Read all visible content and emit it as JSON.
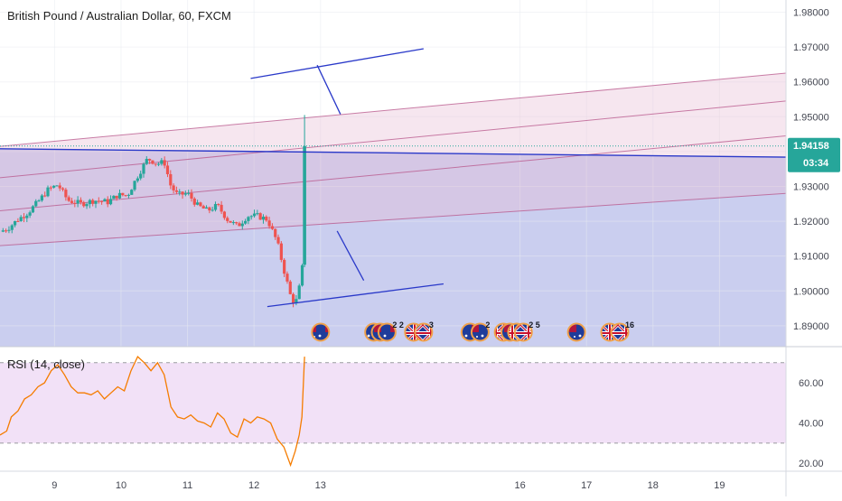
{
  "chart_data": [
    {
      "type": "candlestick",
      "title": "British Pound / Australian Dollar, 60, FXCM",
      "y_ticks": [
        "1.98000",
        "1.97000",
        "1.96000",
        "1.95000",
        "1.94000",
        "1.93000",
        "1.92000",
        "1.91000",
        "1.90000",
        "1.89000"
      ],
      "ylim": [
        1.884,
        1.9835
      ],
      "x_ticks": [
        {
          "label": "9",
          "x": 9
        },
        {
          "label": "10",
          "x": 10
        },
        {
          "label": "11",
          "x": 11
        },
        {
          "label": "12",
          "x": 12
        },
        {
          "label": "13",
          "x": 13
        },
        {
          "label": "16",
          "x": 16
        },
        {
          "label": "17",
          "x": 17
        },
        {
          "label": "18",
          "x": 18
        },
        {
          "label": "19",
          "x": 19
        }
      ],
      "xlim": [
        8.18,
        20.0
      ],
      "last_price": {
        "value": 1.94158,
        "label": "1.94158",
        "countdown": "03:34",
        "color": "#26a69a"
      },
      "colors": {
        "up": "#26a69a",
        "down": "#ef5350",
        "background_zone": "#c7cbee",
        "channel": "#b8558a",
        "trend": "#2a39c9"
      },
      "close_path": [
        [
          8.18,
          1.917
        ],
        [
          8.3,
          1.918
        ],
        [
          8.45,
          1.9205
        ],
        [
          8.6,
          1.9225
        ],
        [
          8.75,
          1.9255
        ],
        [
          8.9,
          1.929
        ],
        [
          9.05,
          1.9305
        ],
        [
          9.2,
          1.926
        ],
        [
          9.4,
          1.925
        ],
        [
          9.6,
          1.926
        ],
        [
          9.8,
          1.9255
        ],
        [
          9.95,
          1.9275
        ],
        [
          10.1,
          1.9275
        ],
        [
          10.25,
          1.933
        ],
        [
          10.4,
          1.938
        ],
        [
          10.55,
          1.9365
        ],
        [
          10.65,
          1.937
        ],
        [
          10.75,
          1.93
        ],
        [
          10.85,
          1.9275
        ],
        [
          11.0,
          1.928
        ],
        [
          11.15,
          1.9245
        ],
        [
          11.3,
          1.923
        ],
        [
          11.45,
          1.9245
        ],
        [
          11.6,
          1.9205
        ],
        [
          11.75,
          1.9185
        ],
        [
          11.9,
          1.9215
        ],
        [
          12.05,
          1.9215
        ],
        [
          12.2,
          1.9205
        ],
        [
          12.35,
          1.914
        ],
        [
          12.45,
          1.906
        ],
        [
          12.55,
          1.8985
        ],
        [
          12.62,
          1.896
        ],
        [
          12.7,
          1.9025
        ],
        [
          12.73,
          1.9075
        ],
        [
          12.76,
          1.9408
        ]
      ],
      "channel": {
        "y_at_8_18": [
          1.9415,
          1.9325,
          1.923,
          1.913
        ],
        "y_at_20_0": [
          1.9625,
          1.9545,
          1.9445,
          1.928
        ]
      },
      "trend_line": {
        "from": [
          8.18,
          1.9408
        ],
        "to": [
          20.0,
          1.9384
        ]
      },
      "pattern_lines": [
        {
          "from": [
            11.95,
            1.961
          ],
          "to": [
            14.55,
            1.9695
          ]
        },
        {
          "from": [
            12.2,
            1.8955
          ],
          "to": [
            14.85,
            1.902
          ]
        },
        {
          "from": [
            12.95,
            1.9648
          ],
          "to": [
            13.3,
            1.9507
          ]
        },
        {
          "from": [
            13.25,
            1.9172
          ],
          "to": [
            13.65,
            1.903
          ]
        }
      ],
      "events": [
        {
          "flag": "au",
          "x": 13.0,
          "text": ""
        },
        {
          "flag": "au",
          "x": 13.8,
          "text": ""
        },
        {
          "flag": "au",
          "x": 13.9,
          "text": ""
        },
        {
          "flag": "au",
          "x": 14.0,
          "text": "2 2"
        },
        {
          "flag": "uk",
          "x": 14.4,
          "text": ""
        },
        {
          "flag": "uk",
          "x": 14.55,
          "text": "3"
        },
        {
          "flag": "au",
          "x": 15.25,
          "text": ""
        },
        {
          "flag": "au",
          "x": 15.4,
          "text": "2"
        },
        {
          "flag": "uk",
          "x": 15.75,
          "text": ""
        },
        {
          "flag": "au",
          "x": 15.85,
          "text": ""
        },
        {
          "flag": "uk",
          "x": 15.95,
          "text": ""
        },
        {
          "flag": "uk",
          "x": 16.05,
          "text": "2 5"
        },
        {
          "flag": "au",
          "x": 16.85,
          "text": ""
        },
        {
          "flag": "uk",
          "x": 17.35,
          "text": ""
        },
        {
          "flag": "uk",
          "x": 17.5,
          "text": "16"
        }
      ]
    },
    {
      "type": "line",
      "title": "RSI (14, close)",
      "y_ticks": [
        "60.00",
        "40.00",
        "20.00"
      ],
      "ylim": [
        16,
        78
      ],
      "bands": [
        70,
        30
      ],
      "color": "#f57c00",
      "x": [
        8.18,
        8.28,
        8.35,
        8.45,
        8.55,
        8.65,
        8.75,
        8.85,
        8.95,
        9.05,
        9.15,
        9.25,
        9.35,
        9.45,
        9.55,
        9.65,
        9.75,
        9.85,
        9.95,
        10.05,
        10.15,
        10.25,
        10.35,
        10.45,
        10.55,
        10.65,
        10.75,
        10.85,
        10.95,
        11.05,
        11.15,
        11.25,
        11.35,
        11.45,
        11.55,
        11.65,
        11.75,
        11.85,
        11.95,
        12.05,
        12.15,
        12.25,
        12.35,
        12.45,
        12.55,
        12.62,
        12.68,
        12.72,
        12.76
      ],
      "values": [
        34,
        36,
        43,
        46,
        52,
        54,
        58,
        60,
        66,
        69,
        64,
        58,
        55,
        55,
        54,
        56,
        52,
        55,
        58,
        56,
        66,
        73,
        70,
        66,
        70,
        64,
        48,
        43,
        42,
        44,
        41,
        40,
        38,
        45,
        42,
        35,
        33,
        42,
        40,
        43,
        42,
        40,
        32,
        28,
        19,
        26,
        34,
        43,
        73
      ]
    }
  ]
}
